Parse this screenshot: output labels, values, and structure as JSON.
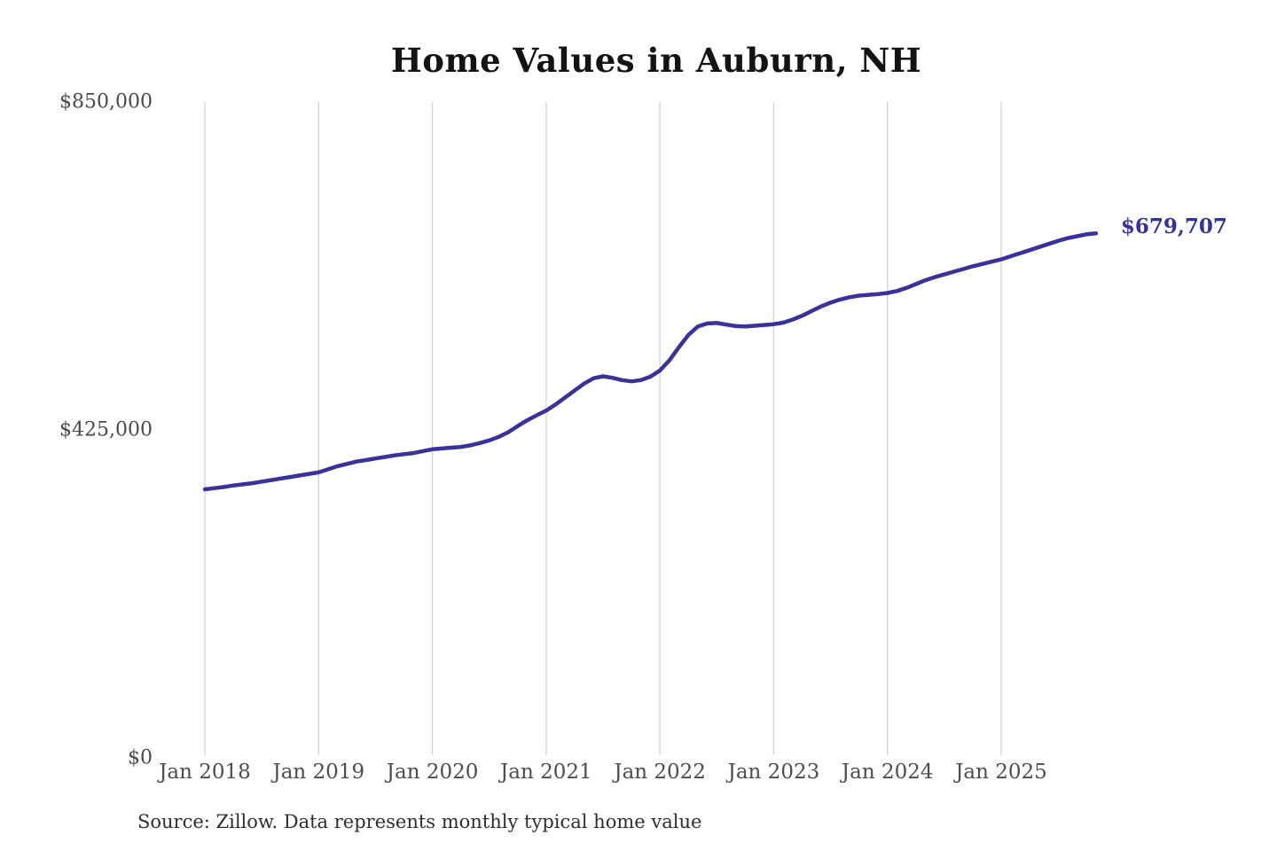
{
  "title": "Home Values in Auburn, NH",
  "source_note": "Source: Zillow. Data represents monthly typical home value",
  "colors": {
    "line": "#39329b",
    "latest_value_label": "#34339b",
    "gridline": "#d2d2d2",
    "axis_text": "#4d4d4d",
    "title_text": "#131313"
  },
  "chart_data": {
    "type": "line",
    "title": "Home Values in Auburn, NH",
    "xlabel": "",
    "ylabel": "",
    "ylim": [
      0,
      850000
    ],
    "grid": "vertical-only",
    "legend": "none",
    "y_ticks": [
      {
        "value": 0,
        "label": "$0"
      },
      {
        "value": 425000,
        "label": "$425,000"
      },
      {
        "value": 850000,
        "label": "$850,000"
      }
    ],
    "x_ticks": [
      {
        "month_index": 0,
        "label": "Jan 2018"
      },
      {
        "month_index": 12,
        "label": "Jan 2019"
      },
      {
        "month_index": 24,
        "label": "Jan 2020"
      },
      {
        "month_index": 36,
        "label": "Jan 2021"
      },
      {
        "month_index": 48,
        "label": "Jan 2022"
      },
      {
        "month_index": 60,
        "label": "Jan 2023"
      },
      {
        "month_index": 72,
        "label": "Jan 2024"
      },
      {
        "month_index": 84,
        "label": "Jan 2025"
      }
    ],
    "last_value_label": "$679,707",
    "series": [
      {
        "name": "Monthly typical home value",
        "start_label": "Jan 2018",
        "frequency": "monthly",
        "values": [
          348000,
          349500,
          351000,
          353000,
          354500,
          356000,
          358000,
          360000,
          362000,
          364000,
          366000,
          368000,
          370000,
          374000,
          378000,
          381000,
          384000,
          386000,
          388000,
          390000,
          392000,
          393500,
          395000,
          397500,
          400000,
          401000,
          402000,
          403000,
          405000,
          408000,
          411500,
          416000,
          422000,
          430000,
          437500,
          444000,
          450000,
          458000,
          467000,
          476000,
          485000,
          492000,
          494500,
          492500,
          489500,
          488000,
          489500,
          494000,
          502000,
          515000,
          532000,
          548000,
          559000,
          563000,
          563500,
          561500,
          559500,
          559000,
          560000,
          561000,
          562000,
          564000,
          568000,
          573000,
          579000,
          585000,
          590000,
          594000,
          597000,
          599000,
          600000,
          601000,
          602500,
          605000,
          609000,
          614000,
          619000,
          623000,
          626500,
          630000,
          633500,
          637000,
          640000,
          643000,
          646000,
          650000,
          654000,
          658000,
          662000,
          666000,
          670000,
          673500,
          676000,
          678500,
          679707
        ]
      }
    ]
  }
}
